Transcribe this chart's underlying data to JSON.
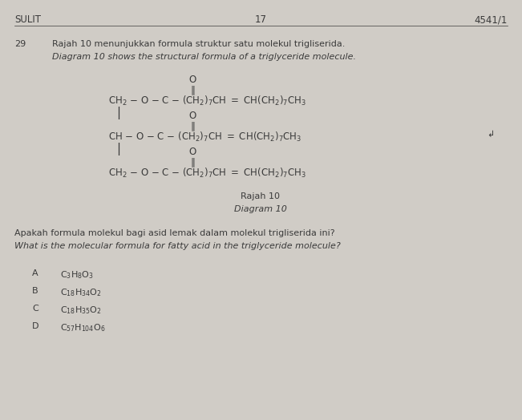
{
  "background_color": "#d0ccc6",
  "page_header_left": "SULIT",
  "page_header_center": "17",
  "page_header_right": "4541/1",
  "question_number": "29",
  "question_text_malay": "Rajah 10 menunjukkan formula struktur satu molekul trigliserida.",
  "question_text_english": "Diagram 10 shows the structural formula of a triglyceride molecule.",
  "diagram_label_malay": "Rajah 10",
  "diagram_label_english": "Diagram 10",
  "question2_malay": "Apakah formula molekul bagi asid lemak dalam molekul trigliserida ini?",
  "question2_english": "What is the molecular formula for fatty acid in the triglyceride molecule?",
  "opt_A_letter": "A",
  "opt_A_formula": "C$_3$H$_8$O$_3$",
  "opt_B_letter": "B",
  "opt_B_formula": "C$_{18}$H$_{34}$O$_2$",
  "opt_C_letter": "C",
  "opt_C_formula": "C$_{18}$H$_{35}$O$_2$",
  "opt_D_letter": "D",
  "opt_D_formula": "C$_{57}$H$_{104}$O$_6$",
  "text_color": "#3a3a3a",
  "header_fontsize": 8.5,
  "body_fontsize": 8.0,
  "chem_fontsize": 8.5
}
